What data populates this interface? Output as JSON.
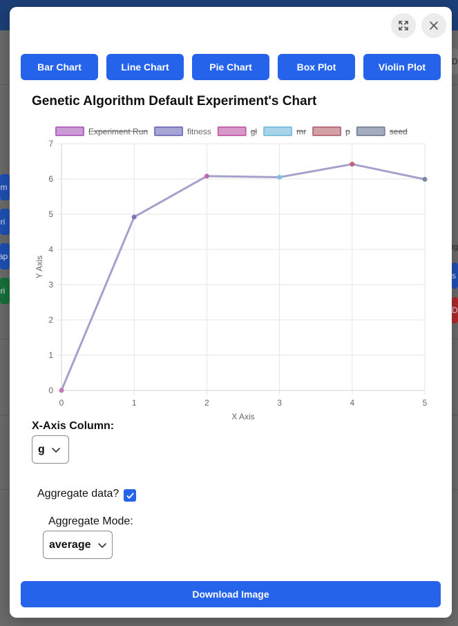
{
  "background": {
    "left_chips": [
      "em",
      "eri",
      "rap",
      "eri"
    ],
    "right_chips": [
      "Da",
      "ig",
      "s",
      "De"
    ]
  },
  "modal": {
    "expand_icon": "expand-icon",
    "close_icon": "close-icon"
  },
  "tabs": [
    {
      "label": "Bar Chart"
    },
    {
      "label": "Line Chart"
    },
    {
      "label": "Pie Chart"
    },
    {
      "label": "Box Plot"
    },
    {
      "label": "Violin Plot"
    }
  ],
  "chart_title": "Genetic Algorithm Default Experiment's Chart",
  "chart_data": {
    "type": "line",
    "title": "",
    "xlabel": "X Axis",
    "ylabel": "Y Axis",
    "xlim": [
      0,
      5
    ],
    "ylim": [
      0,
      7
    ],
    "x_ticks": [
      0,
      1,
      2,
      3,
      4,
      5
    ],
    "y_ticks": [
      0,
      1,
      2,
      3,
      4,
      5,
      6,
      7
    ],
    "grid": true,
    "legend_position": "top",
    "legend": [
      {
        "name": "Experiment Run",
        "color": "#c99ad4",
        "border": "#b566bf",
        "hidden": true
      },
      {
        "name": "fitness",
        "color": "#a6a4d3",
        "border": "#7a76bd",
        "hidden": false
      },
      {
        "name": "gl",
        "color": "#d79ac8",
        "border": "#c266ad",
        "hidden": true
      },
      {
        "name": "mr",
        "color": "#a8d4ea",
        "border": "#7fbfe0",
        "hidden": true
      },
      {
        "name": "p",
        "color": "#d4a0a8",
        "border": "#bb6f7c",
        "hidden": true
      },
      {
        "name": "seed",
        "color": "#a4acbf",
        "border": "#7e889f",
        "hidden": true
      }
    ],
    "series": [
      {
        "name": "fitness",
        "x": [
          0,
          1,
          2,
          3,
          4,
          5
        ],
        "y": [
          0,
          4.92,
          6.08,
          6.05,
          6.42,
          5.99
        ],
        "color": "#a6a0cc"
      }
    ],
    "point_colors": [
      "#c47ab8",
      "#7a76bd",
      "#c266ad",
      "#7fbfe0",
      "#c0607a",
      "#7e889f"
    ]
  },
  "x_axis_column": {
    "label": "X-Axis Column:",
    "value": "g"
  },
  "aggregate": {
    "label": "Aggregate data?",
    "checked": true
  },
  "aggregate_mode": {
    "label": "Aggregate Mode:",
    "value": "average"
  },
  "download_label": "Download Image",
  "colors": {
    "primary": "#2563eb",
    "line": "#a6a0cc"
  }
}
